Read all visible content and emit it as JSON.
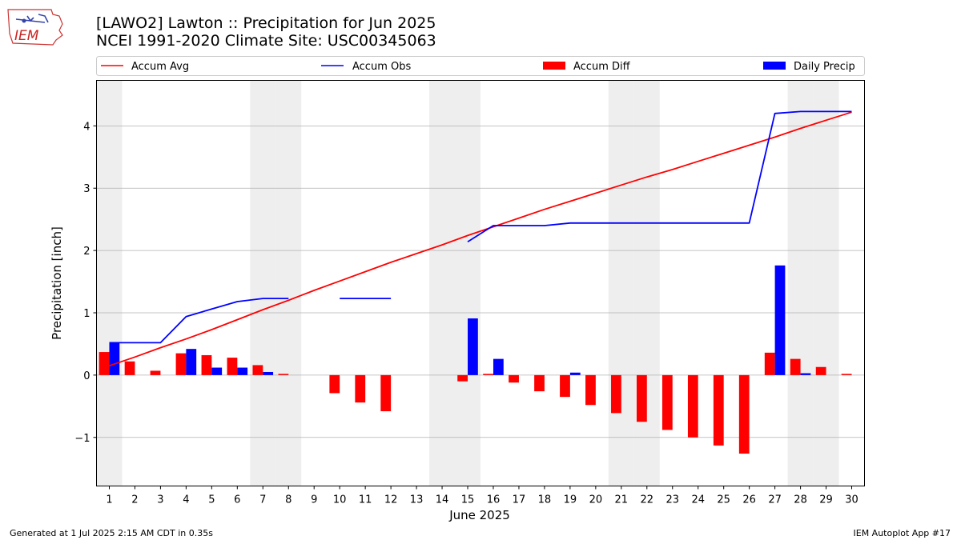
{
  "header": {
    "title_line1": "[LAWO2] Lawton :: Precipitation for Jun 2025",
    "title_line2": "NCEI 1991-2020 Climate Site: USC00345063"
  },
  "logo": {
    "text": "IEM"
  },
  "footer": {
    "left": "Generated at 1 Jul 2025 2:15 AM CDT in 0.35s",
    "right": "IEM Autoplot App #17"
  },
  "colors": {
    "accum_avg": "#ff0000",
    "accum_obs": "#0000ff",
    "accum_diff": "#ff0000",
    "daily_precip": "#0000ff",
    "weekend_shade": "#eeeeee",
    "grid": "#b0b0b0"
  },
  "chart_data": {
    "type": "bar",
    "xlabel": "June 2025",
    "ylabel": "Precipitation [inch]",
    "xlim": [
      0.5,
      30.5
    ],
    "ylim": [
      -1.78,
      4.73
    ],
    "yticks": [
      -1,
      0,
      1,
      2,
      3,
      4
    ],
    "ytick_labels": [
      "−1",
      "0",
      "1",
      "2",
      "3",
      "4"
    ],
    "grid": "horizontal",
    "legend_placement": "top, above plot",
    "legend": [
      "Accum Avg",
      "Accum Obs",
      "Accum Diff",
      "Daily Precip"
    ],
    "weekend_days": [
      1,
      7,
      8,
      14,
      15,
      21,
      22,
      28,
      29
    ],
    "days": [
      1,
      2,
      3,
      4,
      5,
      6,
      7,
      8,
      9,
      10,
      11,
      12,
      13,
      14,
      15,
      16,
      17,
      18,
      19,
      20,
      21,
      22,
      23,
      24,
      25,
      26,
      27,
      28,
      29,
      30
    ],
    "series": [
      {
        "name": "Accum Avg",
        "kind": "line",
        "values": [
          0.15,
          0.29,
          0.44,
          0.58,
          0.73,
          0.89,
          1.05,
          1.2,
          1.36,
          1.51,
          1.66,
          1.81,
          1.95,
          2.09,
          2.24,
          2.38,
          2.52,
          2.66,
          2.79,
          2.92,
          3.05,
          3.18,
          3.3,
          3.43,
          3.56,
          3.69,
          3.82,
          3.96,
          4.09,
          4.22
        ]
      },
      {
        "name": "Accum Obs",
        "kind": "line",
        "values": [
          0.52,
          0.52,
          0.52,
          0.94,
          1.06,
          1.18,
          1.23,
          1.23,
          null,
          1.23,
          1.23,
          1.23,
          null,
          null,
          2.14,
          2.4,
          2.4,
          2.4,
          2.44,
          2.44,
          2.44,
          2.44,
          2.44,
          2.44,
          2.44,
          2.44,
          4.2,
          4.23,
          4.23,
          4.23
        ]
      },
      {
        "name": "Accum Diff",
        "kind": "bar",
        "values": [
          0.37,
          0.22,
          0.07,
          0.35,
          0.32,
          0.28,
          0.16,
          0.02,
          null,
          -0.29,
          -0.44,
          -0.58,
          null,
          null,
          -0.1,
          0.02,
          -0.12,
          -0.26,
          -0.35,
          -0.48,
          -0.61,
          -0.75,
          -0.88,
          -1.0,
          -1.13,
          -1.26,
          0.36,
          0.26,
          0.13,
          0.02
        ]
      },
      {
        "name": "Daily Precip",
        "kind": "bar",
        "values": [
          0.52,
          0,
          0,
          0.42,
          0.12,
          0.12,
          0.05,
          0,
          null,
          0,
          0,
          0,
          null,
          null,
          0.91,
          0.26,
          0,
          0,
          0.04,
          0,
          0,
          0,
          0,
          0,
          0,
          0,
          1.76,
          0.03,
          0,
          0
        ]
      }
    ]
  }
}
